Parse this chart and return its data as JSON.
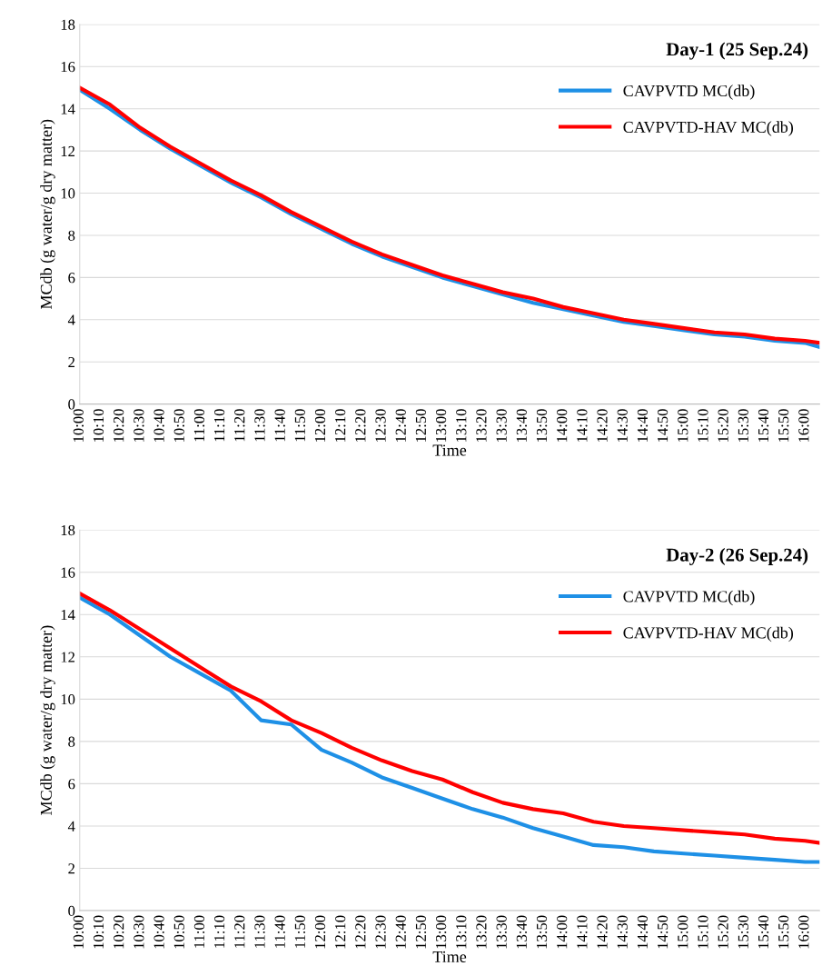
{
  "chart_data": [
    {
      "type": "line",
      "title": "Day-1 (25 Sep.24)",
      "xlabel": "Time",
      "ylabel": "MCdb (g water/g dry matter)",
      "x": [
        10,
        10.25,
        10.5,
        10.75,
        11,
        11.25,
        11.5,
        11.75,
        12,
        12.25,
        12.5,
        12.75,
        13,
        13.25,
        13.5,
        13.75,
        14,
        14.25,
        14.5,
        14.75,
        15,
        15.25,
        15.5,
        15.75,
        16,
        16.12
      ],
      "series": [
        {
          "name": "CAVPVTD MC(db)",
          "color": "#1e90e6",
          "values": [
            14.9,
            14.0,
            13.0,
            12.1,
            11.3,
            10.5,
            9.8,
            9.0,
            8.3,
            7.6,
            7.0,
            6.5,
            6.0,
            5.6,
            5.2,
            4.8,
            4.5,
            4.2,
            3.9,
            3.7,
            3.5,
            3.3,
            3.2,
            3.0,
            2.9,
            2.7
          ]
        },
        {
          "name": "CAVPVTD-HAV MC(db)",
          "color": "#ff0000",
          "values": [
            15.0,
            14.2,
            13.1,
            12.2,
            11.4,
            10.6,
            9.9,
            9.1,
            8.4,
            7.7,
            7.1,
            6.6,
            6.1,
            5.7,
            5.3,
            5.0,
            4.6,
            4.3,
            4.0,
            3.8,
            3.6,
            3.4,
            3.3,
            3.1,
            3.0,
            2.9
          ]
        }
      ],
      "xlim": [
        10,
        16.12
      ],
      "ylim": [
        0,
        18
      ],
      "yticks": [
        0,
        2,
        4,
        6,
        8,
        10,
        12,
        14,
        16,
        18
      ],
      "xticks": [
        {
          "value": 10,
          "label": "10:00"
        },
        {
          "value": 10.1667,
          "label": "10:10"
        },
        {
          "value": 10.3333,
          "label": "10:20"
        },
        {
          "value": 10.5,
          "label": "10:30"
        },
        {
          "value": 10.6667,
          "label": "10:40"
        },
        {
          "value": 10.8333,
          "label": "10:50"
        },
        {
          "value": 11,
          "label": "11:00"
        },
        {
          "value": 11.1667,
          "label": "11:10"
        },
        {
          "value": 11.3333,
          "label": "11:20"
        },
        {
          "value": 11.5,
          "label": "11:30"
        },
        {
          "value": 11.6667,
          "label": "11:40"
        },
        {
          "value": 11.8333,
          "label": "11:50"
        },
        {
          "value": 12,
          "label": "12:00"
        },
        {
          "value": 12.1667,
          "label": "12:10"
        },
        {
          "value": 12.3333,
          "label": "12:20"
        },
        {
          "value": 12.5,
          "label": "12:30"
        },
        {
          "value": 12.6667,
          "label": "12:40"
        },
        {
          "value": 12.8333,
          "label": "12:50"
        },
        {
          "value": 13,
          "label": "13:00"
        },
        {
          "value": 13.1667,
          "label": "13:10"
        },
        {
          "value": 13.3333,
          "label": "13:20"
        },
        {
          "value": 13.5,
          "label": "13:30"
        },
        {
          "value": 13.6667,
          "label": "13:40"
        },
        {
          "value": 13.8333,
          "label": "13:50"
        },
        {
          "value": 14,
          "label": "14:00"
        },
        {
          "value": 14.1667,
          "label": "14:10"
        },
        {
          "value": 14.3333,
          "label": "14:20"
        },
        {
          "value": 14.5,
          "label": "14:30"
        },
        {
          "value": 14.6667,
          "label": "14:40"
        },
        {
          "value": 14.8333,
          "label": "14:50"
        },
        {
          "value": 15,
          "label": "15:00"
        },
        {
          "value": 15.1667,
          "label": "15:10"
        },
        {
          "value": 15.3333,
          "label": "15:20"
        },
        {
          "value": 15.5,
          "label": "15:30"
        },
        {
          "value": 15.6667,
          "label": "15:40"
        },
        {
          "value": 15.8333,
          "label": "15:50"
        },
        {
          "value": 16,
          "label": "16:00"
        }
      ],
      "grid": "y",
      "legend": "top right",
      "line_style": "solid",
      "marker": "none"
    },
    {
      "type": "line",
      "title": "Day-2 (26 Sep.24)",
      "xlabel": "Time",
      "ylabel": "MCdb (g water/g dry matter)",
      "x": [
        10,
        10.25,
        10.5,
        10.75,
        11,
        11.25,
        11.5,
        11.75,
        12,
        12.25,
        12.5,
        12.75,
        13,
        13.25,
        13.5,
        13.75,
        14,
        14.25,
        14.5,
        14.75,
        15,
        15.25,
        15.5,
        15.75,
        16,
        16.12
      ],
      "series": [
        {
          "name": "CAVPVTD MC(db)",
          "color": "#1e90e6",
          "values": [
            14.8,
            14.0,
            13.0,
            12.0,
            11.2,
            10.4,
            9.0,
            8.8,
            7.6,
            7.0,
            6.3,
            5.8,
            5.3,
            4.8,
            4.4,
            3.9,
            3.5,
            3.1,
            3.0,
            2.8,
            2.7,
            2.6,
            2.5,
            2.4,
            2.3,
            2.3
          ]
        },
        {
          "name": "CAVPVTD-HAV MC(db)",
          "color": "#ff0000",
          "values": [
            15.0,
            14.2,
            13.3,
            12.4,
            11.5,
            10.6,
            9.9,
            9.0,
            8.4,
            7.7,
            7.1,
            6.6,
            6.2,
            5.6,
            5.1,
            4.8,
            4.6,
            4.2,
            4.0,
            3.9,
            3.8,
            3.7,
            3.6,
            3.4,
            3.3,
            3.2
          ]
        }
      ],
      "xlim": [
        10,
        16.12
      ],
      "ylim": [
        0,
        18
      ],
      "yticks": [
        0,
        2,
        4,
        6,
        8,
        10,
        12,
        14,
        16,
        18
      ],
      "xticks": [
        {
          "value": 10,
          "label": "10:00"
        },
        {
          "value": 10.1667,
          "label": "10:10"
        },
        {
          "value": 10.3333,
          "label": "10:20"
        },
        {
          "value": 10.5,
          "label": "10:30"
        },
        {
          "value": 10.6667,
          "label": "10:40"
        },
        {
          "value": 10.8333,
          "label": "10:50"
        },
        {
          "value": 11,
          "label": "11:00"
        },
        {
          "value": 11.1667,
          "label": "11:10"
        },
        {
          "value": 11.3333,
          "label": "11:20"
        },
        {
          "value": 11.5,
          "label": "11:30"
        },
        {
          "value": 11.6667,
          "label": "11:40"
        },
        {
          "value": 11.8333,
          "label": "11:50"
        },
        {
          "value": 12,
          "label": "12:00"
        },
        {
          "value": 12.1667,
          "label": "12:10"
        },
        {
          "value": 12.3333,
          "label": "12:20"
        },
        {
          "value": 12.5,
          "label": "12:30"
        },
        {
          "value": 12.6667,
          "label": "12:40"
        },
        {
          "value": 12.8333,
          "label": "12:50"
        },
        {
          "value": 13,
          "label": "13:00"
        },
        {
          "value": 13.1667,
          "label": "13:10"
        },
        {
          "value": 13.3333,
          "label": "13:20"
        },
        {
          "value": 13.5,
          "label": "13:30"
        },
        {
          "value": 13.6667,
          "label": "13:40"
        },
        {
          "value": 13.8333,
          "label": "13:50"
        },
        {
          "value": 14,
          "label": "14:00"
        },
        {
          "value": 14.1667,
          "label": "14:10"
        },
        {
          "value": 14.3333,
          "label": "14:20"
        },
        {
          "value": 14.5,
          "label": "14:30"
        },
        {
          "value": 14.6667,
          "label": "14:40"
        },
        {
          "value": 14.8333,
          "label": "14:50"
        },
        {
          "value": 15,
          "label": "15:00"
        },
        {
          "value": 15.1667,
          "label": "15:10"
        },
        {
          "value": 15.3333,
          "label": "15:20"
        },
        {
          "value": 15.5,
          "label": "15:30"
        },
        {
          "value": 15.6667,
          "label": "15:40"
        },
        {
          "value": 15.8333,
          "label": "15:50"
        },
        {
          "value": 16,
          "label": "16:00"
        }
      ],
      "grid": "y",
      "legend": "top right",
      "line_style": "solid",
      "marker": "none"
    }
  ]
}
